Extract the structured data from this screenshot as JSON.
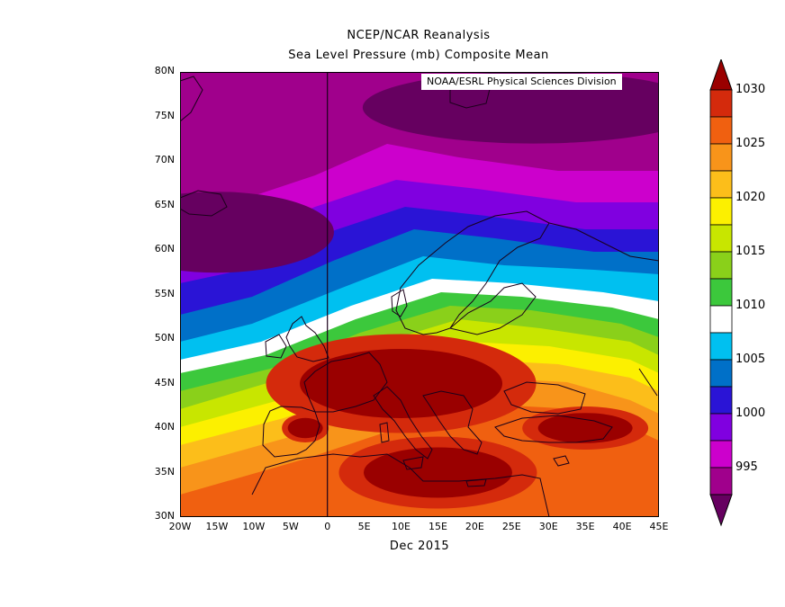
{
  "title": "NCEP/NCAR Reanalysis",
  "subtitle": "Sea Level Pressure (mb) Composite Mean",
  "credit": "NOAA/ESRL Physical Sciences Division",
  "period_label": "Dec 2015",
  "lat_ticks": [
    "80N",
    "75N",
    "70N",
    "65N",
    "60N",
    "55N",
    "50N",
    "45N",
    "40N",
    "35N",
    "30N"
  ],
  "lon_ticks": [
    "20W",
    "15W",
    "10W",
    "5W",
    "0",
    "5E",
    "10E",
    "15E",
    "20E",
    "25E",
    "30E",
    "35E",
    "40E",
    "45E"
  ],
  "colorbar_ticks": [
    "1030",
    "1025",
    "1020",
    "1015",
    "1010",
    "1005",
    "1000",
    "995"
  ],
  "colorbar_colors": [
    "#9a0000",
    "#d42a0c",
    "#f06010",
    "#f8941a",
    "#fcbe1a",
    "#fcf000",
    "#c8e600",
    "#8ad01a",
    "#3cc83c",
    "#ffffff",
    "#00c0f0",
    "#0070c8",
    "#2a14d6",
    "#8000e0",
    "#cc00cc",
    "#a0008c",
    "#660060"
  ],
  "chart_data": {
    "type": "heatmap",
    "variable": "Sea Level Pressure (mb)",
    "period": "Dec 2015",
    "lon_range": [
      -20,
      45
    ],
    "lat_range": [
      30,
      80
    ],
    "contour_levels": [
      995,
      996.5,
      998,
      999.5,
      1001,
      1003,
      1006,
      1008.5,
      1011,
      1013,
      1015,
      1017,
      1019,
      1021,
      1023,
      1025,
      1027,
      1030
    ],
    "pressure_highs": [
      {
        "lon": 10,
        "lat": 45,
        "value": 1030
      },
      {
        "lon": 15,
        "lat": 35,
        "value": 1030
      },
      {
        "lon": 35,
        "lat": 40,
        "value": 1030
      },
      {
        "lon": -3,
        "lat": 40,
        "value": 1030
      }
    ],
    "pressure_lows": [
      {
        "lon": 28,
        "lat": 76,
        "value": 995
      },
      {
        "lon": -15,
        "lat": 62,
        "value": 995
      }
    ],
    "colorbar_range": [
      995,
      1030
    ]
  }
}
